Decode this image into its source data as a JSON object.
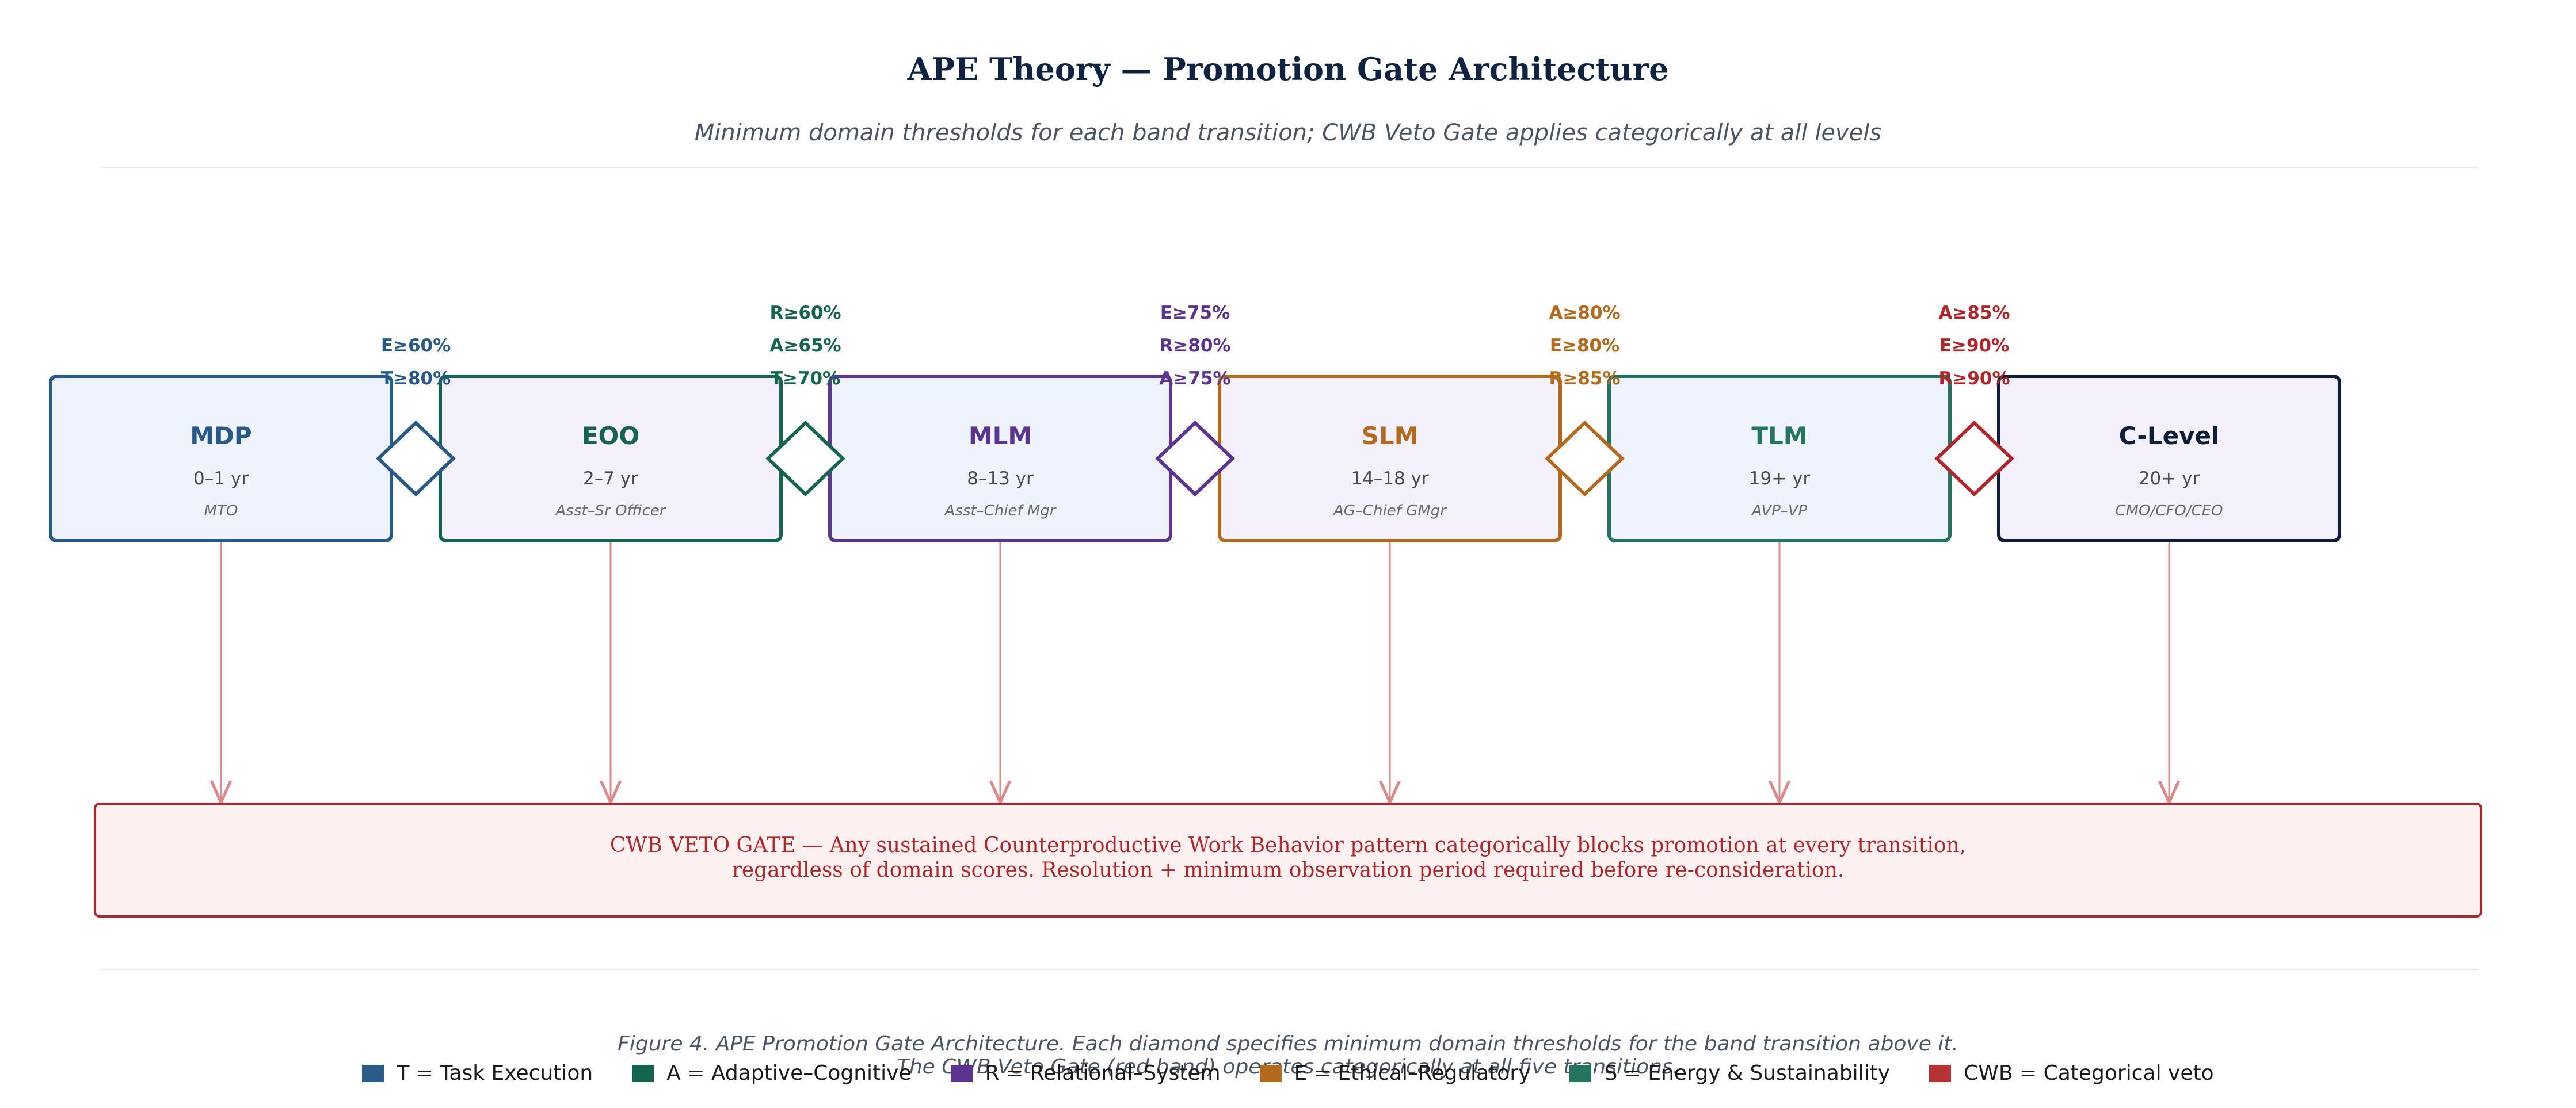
{
  "title": "APE Theory — Promotion Gate Architecture",
  "subtitle": "Minimum domain thresholds for each band transition; CWB Veto Gate applies categorically at all levels",
  "bands": [
    {
      "code": "MDP",
      "years": "0–1 yr",
      "roles": "MTO",
      "color": "#275a86",
      "fill": "#eef3fd"
    },
    {
      "code": "EOO",
      "years": "2–7 yr",
      "roles": "Asst–Sr Officer",
      "color": "#15644f",
      "fill": "#f4f0fc"
    },
    {
      "code": "MLM",
      "years": "8–13 yr",
      "roles": "Asst–Chief Mgr",
      "color": "#5a3490",
      "fill": "#eef3fd"
    },
    {
      "code": "SLM",
      "years": "14–18 yr",
      "roles": "AG–Chief GMgr",
      "color": "#b36a1f",
      "fill": "#f4f0fc"
    },
    {
      "code": "TLM",
      "years": "19+ yr",
      "roles": "AVP–VP",
      "color": "#247560",
      "fill": "#eef3fd"
    },
    {
      "code": "C-Level",
      "years": "20+ yr",
      "roles": "CMO/CFO/CEO",
      "color": "#0f1e38",
      "fill": "#f4f0fc"
    }
  ],
  "gates": [
    {
      "color": "#275a86",
      "thresholds": [
        "E≥60%",
        "T≥80%"
      ]
    },
    {
      "color": "#15644f",
      "thresholds": [
        "R≥60%",
        "A≥65%",
        "T≥70%"
      ]
    },
    {
      "color": "#5a3490",
      "thresholds": [
        "E≥75%",
        "R≥80%",
        "A≥75%"
      ]
    },
    {
      "color": "#b36a1f",
      "thresholds": [
        "A≥80%",
        "E≥80%",
        "R≥85%"
      ]
    },
    {
      "color": "#b0262b",
      "thresholds": [
        "A≥85%",
        "E≥90%",
        "R≥90%"
      ]
    }
  ],
  "veto_gate": {
    "line1": "CWB VETO GATE  —  Any sustained Counterproductive Work Behavior pattern categorically blocks promotion at every transition,",
    "line2": "regardless of domain scores. Resolution + minimum observation period required before re-consideration.",
    "border_color": "#b0262b",
    "fill": "#fdf0f0",
    "arrow_color": "#d98a8a"
  },
  "caption": {
    "line1": "Figure 4. APE Promotion Gate Architecture. Each diamond specifies minimum domain thresholds for the band transition above it.",
    "line2": "The CWB Veto Gate (red band) operates categorically at all five transitions."
  },
  "legend": [
    {
      "label": "T = Task Execution",
      "color": "#2a5c8a"
    },
    {
      "label": "A = Adaptive–Cognitive",
      "color": "#15644f"
    },
    {
      "label": "R = Relational–System",
      "color": "#5a3490"
    },
    {
      "label": "E = Ethical–Regulatory",
      "color": "#b36a1f"
    },
    {
      "label": "S = Energy & Sustainability",
      "color": "#247560"
    },
    {
      "label": "CWB = Categorical veto",
      "color": "#b73333"
    }
  ]
}
